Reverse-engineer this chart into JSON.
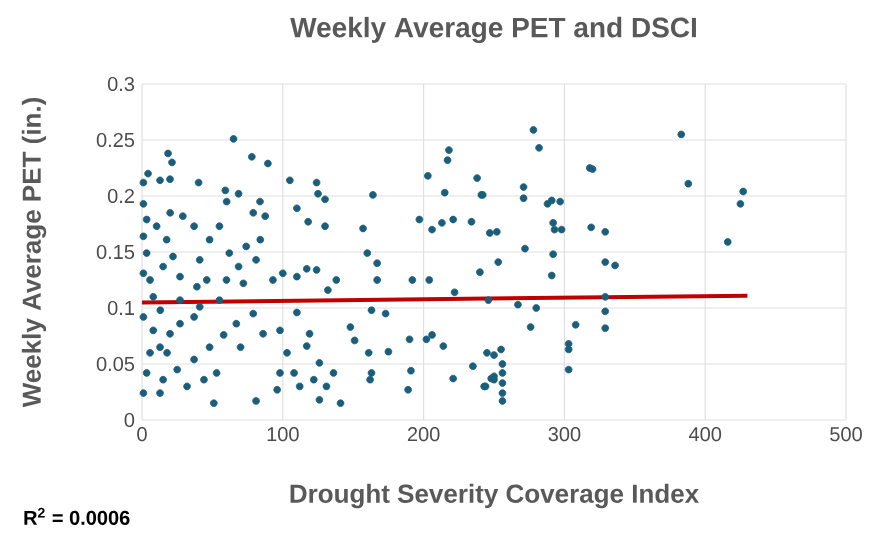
{
  "chart_data": {
    "type": "scatter",
    "title": "Weekly Average PET and DSCI",
    "xlabel": "Drought Severity Coverage Index",
    "ylabel": "Weekly Average PET (in.)",
    "annotations": [
      "R$^{2}$ = 0.0006"
    ],
    "xlim": [
      0,
      500
    ],
    "xticks": [
      0,
      100,
      200,
      300,
      400,
      500
    ],
    "ylim": [
      0,
      0.3
    ],
    "yticks": [
      0,
      0.05,
      0.1,
      0.15,
      0.2,
      0.25,
      0.3
    ],
    "grid": true,
    "series": [
      {
        "color": "#1b5e7b",
        "marker": "circle",
        "x": [
          18.5,
          21.3,
          4.3,
          1,
          12.8,
          19.9,
          40.2,
          78,
          89.4,
          65,
          59.2,
          60.1,
          68.6,
          83.8,
          79,
          87.5,
          105,
          124,
          125,
          130,
          110,
          118,
          130,
          164,
          157,
          160,
          167,
          167,
          203,
          218,
          217,
          215,
          197,
          206,
          213,
          221,
          238,
          241,
          234,
          247,
          240,
          222,
          204,
          192,
          190,
          202,
          214,
          206,
          235,
          221,
          189,
          191,
          148,
          151,
          163,
          173,
          175,
          161,
          163,
          162,
          243,
          248,
          245,
          103,
          117,
          126,
          122,
          136,
          141,
          126,
          112,
          98,
          96,
          81,
          108,
          131,
          119,
          110,
          117,
          124,
          138,
          132,
          110,
          98,
          86,
          79,
          67,
          70,
          58,
          48,
          53,
          44,
          37,
          51,
          32,
          25,
          15,
          1,
          3.3,
          5.7,
          12.8,
          19.9,
          27,
          37,
          1,
          8,
          17.8,
          12.8,
          1,
          3.3,
          1,
          3.3,
          1,
          5.7,
          10.4,
          17.5,
          22,
          29,
          15,
          27,
          37,
          41,
          39,
          48,
          55,
          62,
          68.6,
          74,
          81,
          60,
          72,
          84,
          46,
          20,
          8,
          27,
          13,
          41,
          55,
          93,
          100,
          278,
          282,
          383,
          388,
          318,
          320,
          427,
          425,
          416,
          271,
          271,
          288,
          291,
          297,
          242,
          252,
          292,
          293,
          298,
          319,
          329,
          272,
          292,
          253,
          329,
          336,
          291,
          246,
          267,
          280,
          329,
          329,
          329,
          276,
          308,
          303,
          303,
          303,
          250,
          255,
          256,
          256,
          256,
          256,
          256,
          250,
          250,
          244
        ],
        "values": [
          0.238,
          0.23,
          0.22,
          0.212,
          0.214,
          0.215,
          0.212,
          0.235,
          0.229,
          0.251,
          0.205,
          0.195,
          0.202,
          0.195,
          0.185,
          0.182,
          0.214,
          0.212,
          0.202,
          0.197,
          0.189,
          0.177,
          0.173,
          0.201,
          0.171,
          0.149,
          0.14,
          0.125,
          0.218,
          0.241,
          0.232,
          0.203,
          0.179,
          0.17,
          0.176,
          0.179,
          0.216,
          0.201,
          0.177,
          0.167,
          0.132,
          0.114,
          0.125,
          0.125,
          0.072,
          0.072,
          0.066,
          0.076,
          0.048,
          0.037,
          0.027,
          0.044,
          0.083,
          0.071,
          0.098,
          0.095,
          0.061,
          0.06,
          0.042,
          0.036,
          0.03,
          0.037,
          0.06,
          0.06,
          0.066,
          0.051,
          0.036,
          0.042,
          0.015,
          0.018,
          0.03,
          0.042,
          0.027,
          0.017,
          0.042,
          0.03,
          0.077,
          0.128,
          0.135,
          0.134,
          0.125,
          0.116,
          0.096,
          0.08,
          0.077,
          0.095,
          0.086,
          0.065,
          0.076,
          0.065,
          0.042,
          0.036,
          0.054,
          0.015,
          0.03,
          0.045,
          0.036,
          0.024,
          0.042,
          0.06,
          0.065,
          0.077,
          0.086,
          0.092,
          0.092,
          0.08,
          0.06,
          0.024,
          0.193,
          0.179,
          0.164,
          0.149,
          0.131,
          0.125,
          0.173,
          0.161,
          0.146,
          0.182,
          0.137,
          0.128,
          0.173,
          0.143,
          0.119,
          0.161,
          0.173,
          0.149,
          0.137,
          0.155,
          0.143,
          0.125,
          0.122,
          0.161,
          0.125,
          0.185,
          0.11,
          0.107,
          0.098,
          0.101,
          0.107,
          0.125,
          0.131,
          0.259,
          0.243,
          0.255,
          0.211,
          0.225,
          0.224,
          0.204,
          0.193,
          0.159,
          0.208,
          0.198,
          0.193,
          0.196,
          0.195,
          0.201,
          0.168,
          0.176,
          0.17,
          0.17,
          0.172,
          0.168,
          0.153,
          0.148,
          0.141,
          0.141,
          0.138,
          0.129,
          0.107,
          0.103,
          0.1,
          0.11,
          0.097,
          0.082,
          0.083,
          0.085,
          0.068,
          0.063,
          0.045,
          0.058,
          0.063,
          0.05,
          0.042,
          0.033,
          0.024,
          0.017,
          0.039,
          0.036,
          0.03
        ]
      },
      {
        "type": "line",
        "color": "#c00000",
        "marker": "none",
        "x": [
          0,
          430
        ],
        "values": [
          0.105,
          0.111
        ]
      }
    ]
  }
}
